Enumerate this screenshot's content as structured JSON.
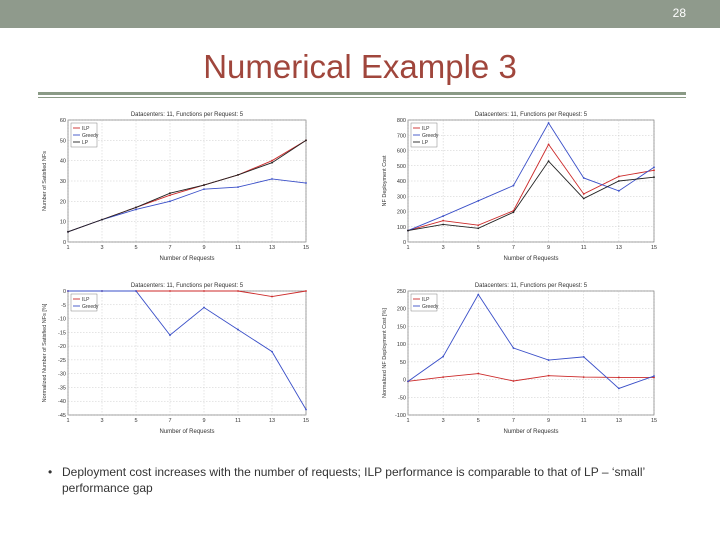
{
  "header": {
    "page_number": "28"
  },
  "slide": {
    "title": "Numerical Example 3",
    "bullet_text": "Deployment cost increases with the number of requests; ILP performance is comparable to that of LP – ‘small’ performance gap"
  },
  "colors": {
    "ilp": "#cc2a2a",
    "greedy": "#3a4fc8",
    "lp": "#222222",
    "title": "#a0463c",
    "rule": "#8a9a86",
    "topbar": "#8f9a8c"
  },
  "chart_data": [
    {
      "type": "line",
      "title": "Datacenters: 11, Functions per Request: 5",
      "xlabel": "Number of Requests",
      "ylabel": "Number of Satisfied NFs",
      "x": [
        1,
        3,
        5,
        7,
        9,
        11,
        13,
        15
      ],
      "ylim": [
        0,
        60
      ],
      "yticks": [
        0,
        10,
        20,
        30,
        40,
        50,
        60
      ],
      "grid": true,
      "legend": "top-left",
      "series": [
        {
          "name": "ILP",
          "color": "#cc2a2a",
          "values": [
            5,
            11,
            17,
            23,
            28,
            33,
            40,
            50
          ]
        },
        {
          "name": "Greedy",
          "color": "#3a4fc8",
          "values": [
            5,
            11,
            16,
            20,
            26,
            27,
            31,
            29
          ]
        },
        {
          "name": "LP",
          "color": "#222222",
          "values": [
            5,
            11,
            17,
            24,
            28,
            33,
            39,
            50
          ]
        }
      ]
    },
    {
      "type": "line",
      "title": "Datacenters: 11, Functions per Request: 5",
      "xlabel": "Number of Requests",
      "ylabel": "NF Deployment Cost",
      "x": [
        1,
        3,
        5,
        7,
        9,
        11,
        13,
        15
      ],
      "ylim": [
        0,
        800
      ],
      "yticks": [
        0,
        100,
        200,
        300,
        400,
        500,
        600,
        700,
        800
      ],
      "grid": true,
      "legend": "top-left",
      "series": [
        {
          "name": "ILP",
          "color": "#cc2a2a",
          "values": [
            75,
            140,
            110,
            205,
            640,
            315,
            430,
            470
          ]
        },
        {
          "name": "Greedy",
          "color": "#3a4fc8",
          "values": [
            75,
            170,
            270,
            370,
            780,
            420,
            335,
            490
          ]
        },
        {
          "name": "LP",
          "color": "#222222",
          "values": [
            75,
            115,
            90,
            195,
            530,
            285,
            400,
            425
          ]
        }
      ]
    },
    {
      "type": "line",
      "title": "Datacenters: 11, Functions per Request: 5",
      "xlabel": "Number of Requests",
      "ylabel": "Normalized Number of Satisfied NFs [%]",
      "x": [
        1,
        3,
        5,
        7,
        9,
        11,
        13,
        15
      ],
      "ylim": [
        -45,
        0
      ],
      "yticks": [
        0,
        -5,
        -10,
        -15,
        -20,
        -25,
        -30,
        -35,
        -40,
        -45
      ],
      "grid": true,
      "legend": "top-left",
      "series": [
        {
          "name": "ILP",
          "color": "#cc2a2a",
          "values": [
            0,
            0,
            0,
            0,
            0,
            0,
            -2,
            0
          ]
        },
        {
          "name": "Greedy",
          "color": "#3a4fc8",
          "values": [
            0,
            0,
            0,
            -16,
            -6,
            -14,
            -22,
            -43
          ]
        }
      ]
    },
    {
      "type": "line",
      "title": "Datacenters: 11, Functions per Request: 5",
      "xlabel": "Number of Requests",
      "ylabel": "Normalized NF Deployment Cost [%]",
      "x": [
        1,
        3,
        5,
        7,
        9,
        11,
        13,
        15
      ],
      "ylim": [
        -100,
        250
      ],
      "yticks": [
        -100,
        -50,
        0,
        50,
        100,
        150,
        200,
        250
      ],
      "grid": true,
      "legend": "top-left",
      "series": [
        {
          "name": "ILP",
          "color": "#cc2a2a",
          "values": [
            -5,
            7,
            17,
            -4,
            11,
            7,
            6,
            6
          ]
        },
        {
          "name": "Greedy",
          "color": "#3a4fc8",
          "values": [
            -5,
            65,
            240,
            89,
            55,
            64,
            -25,
            10
          ]
        }
      ]
    }
  ]
}
